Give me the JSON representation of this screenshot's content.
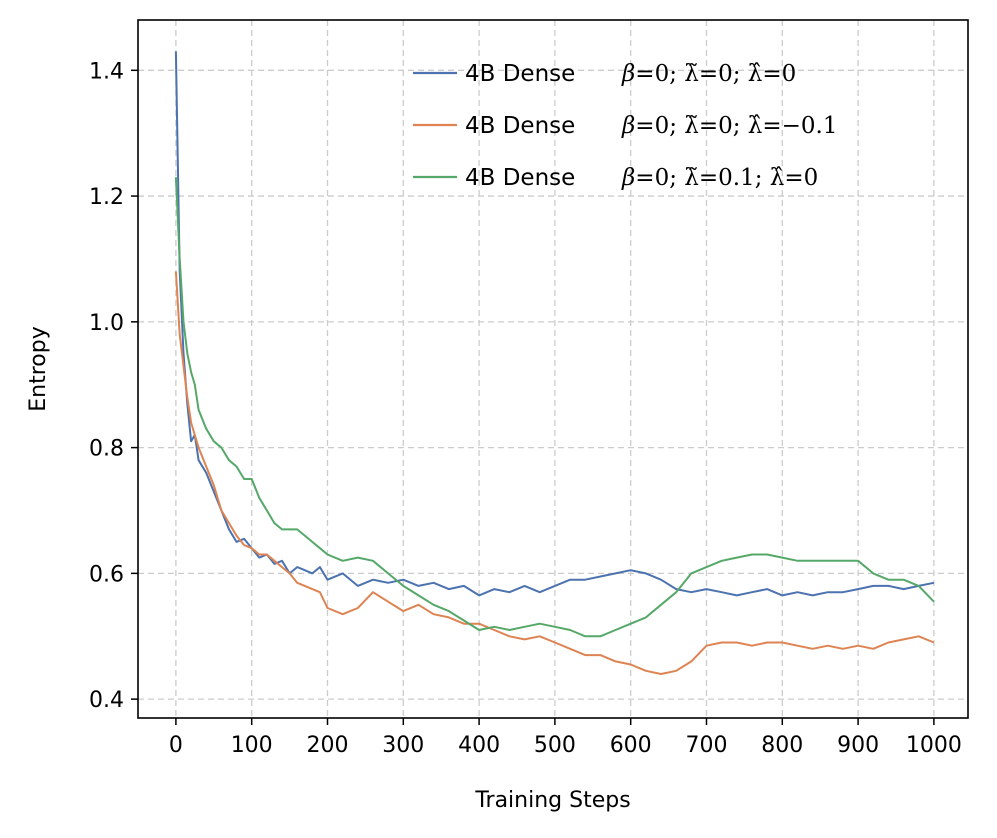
{
  "chart_data": {
    "type": "line",
    "title": "",
    "xlabel": "Training Steps",
    "ylabel": "Entropy",
    "xlim": [
      -50,
      1045
    ],
    "ylim": [
      0.37,
      1.48
    ],
    "xticks": [
      0,
      100,
      200,
      300,
      400,
      500,
      600,
      700,
      800,
      900,
      1000
    ],
    "yticks": [
      0.4,
      0.6,
      0.8,
      1.0,
      1.2,
      1.4
    ],
    "ytick_labels": [
      "0.4",
      "0.6",
      "0.8",
      "1.0",
      "1.2",
      "1.4"
    ],
    "grid": true,
    "legend_position": "top-right",
    "series": [
      {
        "name": "4B Dense",
        "math": "β=0; λ̃=0; λ̂=0",
        "color": "#4c72b0",
        "x": [
          0,
          5,
          10,
          15,
          20,
          25,
          30,
          40,
          50,
          60,
          70,
          80,
          90,
          100,
          110,
          120,
          130,
          140,
          150,
          160,
          170,
          180,
          190,
          200,
          220,
          240,
          260,
          280,
          300,
          320,
          340,
          360,
          380,
          400,
          420,
          440,
          460,
          480,
          500,
          520,
          540,
          560,
          580,
          600,
          620,
          640,
          660,
          680,
          700,
          720,
          740,
          760,
          780,
          800,
          820,
          840,
          860,
          880,
          900,
          920,
          940,
          960,
          980,
          1000
        ],
        "values": [
          1.43,
          1.08,
          0.95,
          0.87,
          0.81,
          0.82,
          0.78,
          0.76,
          0.73,
          0.7,
          0.67,
          0.65,
          0.655,
          0.64,
          0.625,
          0.63,
          0.615,
          0.62,
          0.6,
          0.61,
          0.605,
          0.6,
          0.61,
          0.59,
          0.6,
          0.58,
          0.59,
          0.585,
          0.59,
          0.58,
          0.585,
          0.575,
          0.58,
          0.565,
          0.575,
          0.57,
          0.58,
          0.57,
          0.58,
          0.59,
          0.59,
          0.595,
          0.6,
          0.605,
          0.6,
          0.59,
          0.575,
          0.57,
          0.575,
          0.57,
          0.565,
          0.57,
          0.575,
          0.565,
          0.57,
          0.565,
          0.57,
          0.57,
          0.575,
          0.58,
          0.58,
          0.575,
          0.58,
          0.585
        ]
      },
      {
        "name": "4B Dense",
        "math": "β=0; λ̃=0; λ̂=−0.1",
        "color": "#dd8452",
        "x": [
          0,
          5,
          10,
          15,
          20,
          25,
          30,
          40,
          50,
          60,
          70,
          80,
          90,
          100,
          110,
          120,
          130,
          140,
          150,
          160,
          170,
          180,
          190,
          200,
          220,
          240,
          260,
          280,
          300,
          320,
          340,
          360,
          380,
          400,
          420,
          440,
          460,
          480,
          500,
          520,
          540,
          560,
          580,
          600,
          620,
          640,
          660,
          680,
          700,
          720,
          740,
          760,
          780,
          800,
          820,
          840,
          860,
          880,
          900,
          920,
          940,
          960,
          980,
          1000
        ],
        "values": [
          1.08,
          0.98,
          0.93,
          0.88,
          0.84,
          0.82,
          0.8,
          0.77,
          0.74,
          0.7,
          0.68,
          0.66,
          0.645,
          0.64,
          0.63,
          0.63,
          0.62,
          0.61,
          0.6,
          0.585,
          0.58,
          0.575,
          0.57,
          0.545,
          0.535,
          0.545,
          0.57,
          0.555,
          0.54,
          0.55,
          0.535,
          0.53,
          0.52,
          0.52,
          0.51,
          0.5,
          0.495,
          0.5,
          0.49,
          0.48,
          0.47,
          0.47,
          0.46,
          0.455,
          0.445,
          0.44,
          0.445,
          0.46,
          0.485,
          0.49,
          0.49,
          0.485,
          0.49,
          0.49,
          0.485,
          0.48,
          0.485,
          0.48,
          0.485,
          0.48,
          0.49,
          0.495,
          0.5,
          0.49
        ]
      },
      {
        "name": "4B Dense",
        "math": "β=0; λ̃=0.1; λ̂=0",
        "color": "#55a868",
        "x": [
          0,
          5,
          10,
          15,
          20,
          25,
          30,
          40,
          50,
          60,
          70,
          80,
          90,
          100,
          110,
          120,
          130,
          140,
          150,
          160,
          170,
          180,
          190,
          200,
          220,
          240,
          260,
          280,
          300,
          320,
          340,
          360,
          380,
          400,
          420,
          440,
          460,
          480,
          500,
          520,
          540,
          560,
          580,
          600,
          620,
          640,
          660,
          680,
          700,
          720,
          740,
          760,
          780,
          800,
          820,
          840,
          860,
          880,
          900,
          920,
          940,
          960,
          980,
          1000
        ],
        "values": [
          1.23,
          1.1,
          1.0,
          0.95,
          0.92,
          0.9,
          0.86,
          0.83,
          0.81,
          0.8,
          0.78,
          0.77,
          0.75,
          0.75,
          0.72,
          0.7,
          0.68,
          0.67,
          0.67,
          0.67,
          0.66,
          0.65,
          0.64,
          0.63,
          0.62,
          0.625,
          0.62,
          0.6,
          0.58,
          0.565,
          0.55,
          0.54,
          0.525,
          0.51,
          0.515,
          0.51,
          0.515,
          0.52,
          0.515,
          0.51,
          0.5,
          0.5,
          0.51,
          0.52,
          0.53,
          0.55,
          0.57,
          0.6,
          0.61,
          0.62,
          0.625,
          0.63,
          0.63,
          0.625,
          0.62,
          0.62,
          0.62,
          0.62,
          0.62,
          0.6,
          0.59,
          0.59,
          0.58,
          0.555
        ]
      }
    ]
  },
  "legend": [
    {
      "label": "4B Dense",
      "math_beta": "β",
      "math_rest": "=0;  λ̃=0;  λ̂=0"
    },
    {
      "label": "4B Dense",
      "math_beta": "β",
      "math_rest": "=0;  λ̃=0;  λ̂=−0.1"
    },
    {
      "label": "4B Dense",
      "math_beta": "β",
      "math_rest": "=0;  λ̃=0.1;  λ̂=0"
    }
  ]
}
